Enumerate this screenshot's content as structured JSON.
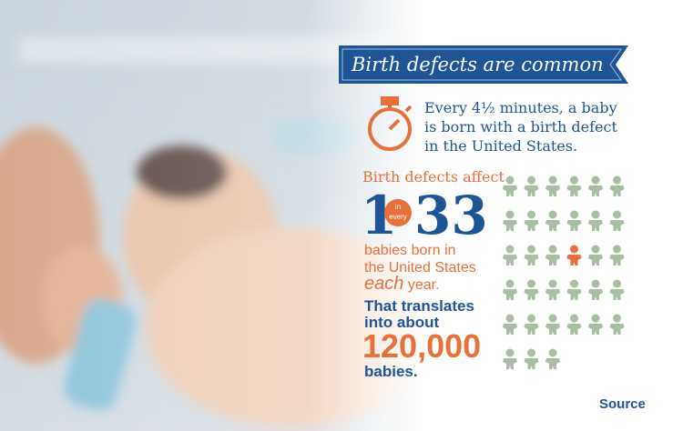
{
  "banner": {
    "title": "Birth defects are common"
  },
  "fact": {
    "lines": [
      "Every 4½ minutes, a baby",
      "is born with a birth defect",
      "in the United States."
    ]
  },
  "stat": {
    "intro": "Birth defects affect",
    "numerator": "1",
    "connector": [
      "in",
      "every"
    ],
    "total": "33",
    "lines": [
      "babies born in",
      "the United States"
    ],
    "emphasis": "each",
    "line_end": "year."
  },
  "translation": {
    "lines": [
      "That translates",
      "into about"
    ],
    "number": "120,000",
    "unit": "babies."
  },
  "source": "Source"
}
